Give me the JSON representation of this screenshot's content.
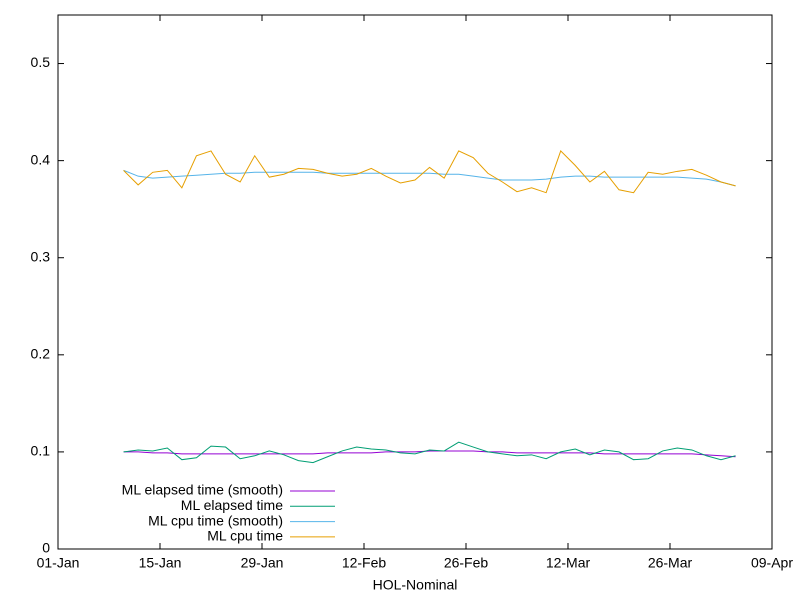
{
  "chart_data": {
    "type": "line",
    "xlabel": "HOL-Nominal",
    "x": [
      "10-Jan",
      "12-Jan",
      "14-Jan",
      "16-Jan",
      "18-Jan",
      "20-Jan",
      "22-Jan",
      "24-Jan",
      "26-Jan",
      "28-Jan",
      "30-Jan",
      "01-Feb",
      "03-Feb",
      "05-Feb",
      "07-Feb",
      "09-Feb",
      "11-Feb",
      "13-Feb",
      "15-Feb",
      "17-Feb",
      "19-Feb",
      "21-Feb",
      "23-Feb",
      "25-Feb",
      "27-Feb",
      "01-Mar",
      "03-Mar",
      "05-Mar",
      "07-Mar",
      "09-Mar",
      "11-Mar",
      "13-Mar",
      "15-Mar",
      "17-Mar",
      "19-Mar",
      "21-Mar",
      "23-Mar",
      "25-Mar",
      "27-Mar",
      "29-Mar",
      "31-Mar",
      "02-Apr",
      "04-Apr"
    ],
    "series": [
      {
        "name": "ML elapsed time (smooth)",
        "color": "#9400d3",
        "values": [
          0.1,
          0.1,
          0.099,
          0.099,
          0.098,
          0.098,
          0.098,
          0.098,
          0.098,
          0.098,
          0.098,
          0.098,
          0.098,
          0.098,
          0.099,
          0.099,
          0.099,
          0.099,
          0.1,
          0.1,
          0.1,
          0.101,
          0.101,
          0.101,
          0.101,
          0.1,
          0.1,
          0.099,
          0.099,
          0.099,
          0.099,
          0.099,
          0.099,
          0.098,
          0.098,
          0.098,
          0.098,
          0.098,
          0.098,
          0.098,
          0.097,
          0.096,
          0.095
        ]
      },
      {
        "name": "ML elapsed time",
        "color": "#009e73",
        "values": [
          0.1,
          0.102,
          0.101,
          0.104,
          0.092,
          0.094,
          0.106,
          0.105,
          0.093,
          0.096,
          0.101,
          0.097,
          0.091,
          0.089,
          0.095,
          0.101,
          0.105,
          0.103,
          0.102,
          0.099,
          0.098,
          0.102,
          0.101,
          0.11,
          0.105,
          0.1,
          0.098,
          0.096,
          0.097,
          0.093,
          0.1,
          0.103,
          0.097,
          0.102,
          0.1,
          0.092,
          0.093,
          0.101,
          0.104,
          0.102,
          0.096,
          0.092,
          0.096
        ]
      },
      {
        "name": "ML cpu time (smooth)",
        "color": "#56b4e9",
        "values": [
          0.39,
          0.384,
          0.382,
          0.383,
          0.384,
          0.385,
          0.386,
          0.387,
          0.387,
          0.388,
          0.388,
          0.388,
          0.388,
          0.388,
          0.387,
          0.387,
          0.387,
          0.387,
          0.387,
          0.387,
          0.387,
          0.387,
          0.386,
          0.386,
          0.384,
          0.382,
          0.38,
          0.38,
          0.38,
          0.381,
          0.383,
          0.384,
          0.384,
          0.383,
          0.383,
          0.383,
          0.383,
          0.383,
          0.383,
          0.382,
          0.381,
          0.378,
          0.374
        ]
      },
      {
        "name": "ML cpu time",
        "color": "#e69f00",
        "values": [
          0.39,
          0.375,
          0.388,
          0.39,
          0.372,
          0.405,
          0.41,
          0.386,
          0.378,
          0.405,
          0.383,
          0.386,
          0.392,
          0.391,
          0.387,
          0.384,
          0.386,
          0.392,
          0.384,
          0.377,
          0.38,
          0.393,
          0.382,
          0.41,
          0.403,
          0.387,
          0.378,
          0.368,
          0.372,
          0.367,
          0.41,
          0.395,
          0.378,
          0.389,
          0.37,
          0.367,
          0.388,
          0.386,
          0.389,
          0.391,
          0.385,
          0.378,
          0.374
        ]
      }
    ],
    "xlim": [
      "01-Jan",
      "09-Apr"
    ],
    "xticks": [
      "01-Jan",
      "15-Jan",
      "29-Jan",
      "12-Feb",
      "26-Feb",
      "12-Mar",
      "26-Mar",
      "09-Apr"
    ],
    "ylim": [
      0,
      0.55
    ],
    "yticks": [
      0,
      0.1,
      0.2,
      0.3,
      0.4,
      0.5
    ],
    "grid": false,
    "legend": "lower left"
  }
}
